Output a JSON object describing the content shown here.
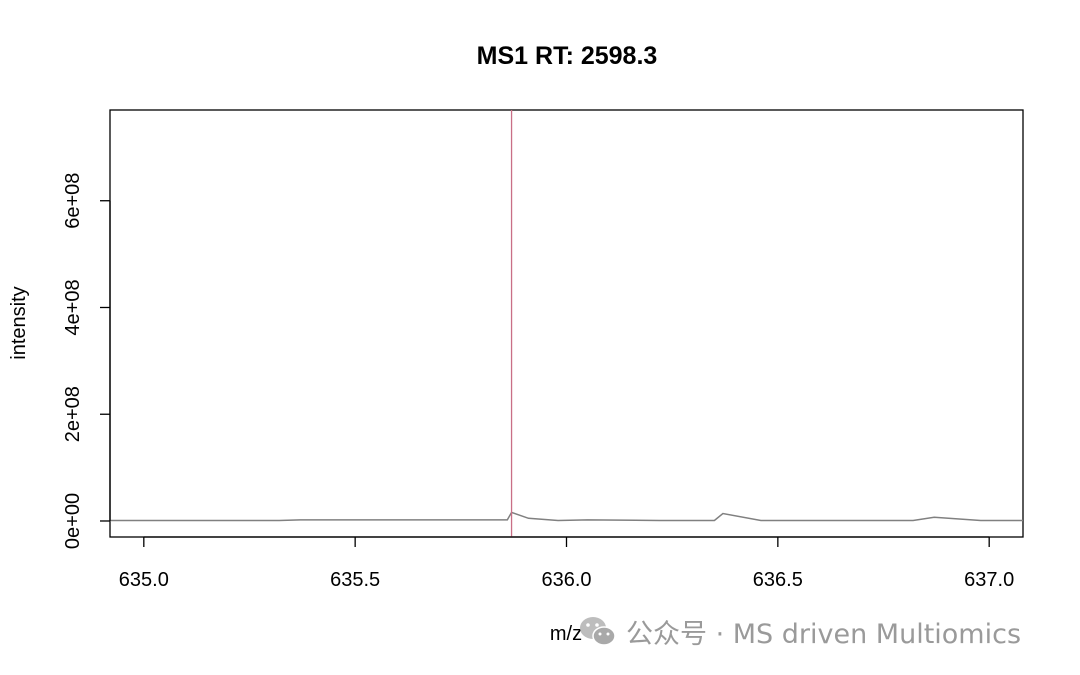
{
  "chart_data": {
    "type": "line",
    "title": "MS1 RT: 2598.3",
    "xlabel": "m/z",
    "ylabel": "intensity",
    "xlim": [
      634.92,
      637.08
    ],
    "ylim": [
      -30000000,
      770000000
    ],
    "x_ticks": [
      635.0,
      635.5,
      636.0,
      636.5,
      637.0
    ],
    "x_tick_labels": [
      "635.0",
      "635.5",
      "636.0",
      "636.5",
      "637.0"
    ],
    "y_ticks": [
      0,
      200000000,
      400000000,
      600000000
    ],
    "y_tick_labels": [
      "0e+00",
      "2e+08",
      "4e+08",
      "6e+08"
    ],
    "grid": false,
    "marker_line": {
      "x": 635.87,
      "color": "#c96f86"
    },
    "series": [
      {
        "color": "#808080",
        "x": [
          634.92,
          635.32,
          635.37,
          635.72,
          635.86,
          635.87,
          635.91,
          635.98,
          636.05,
          636.22,
          636.35,
          636.37,
          636.46,
          636.82,
          636.87,
          636.98,
          637.08
        ],
        "y": [
          1000000,
          1000000,
          2000000,
          2000000,
          2000000,
          16000000,
          5000000,
          1000000,
          2000000,
          1000000,
          1000000,
          14000000,
          1000000,
          1000000,
          7000000,
          1000000,
          1000000
        ]
      }
    ]
  },
  "watermark": {
    "icon": "wechat-icon",
    "text": "公众号 · MS driven Multiomics"
  }
}
